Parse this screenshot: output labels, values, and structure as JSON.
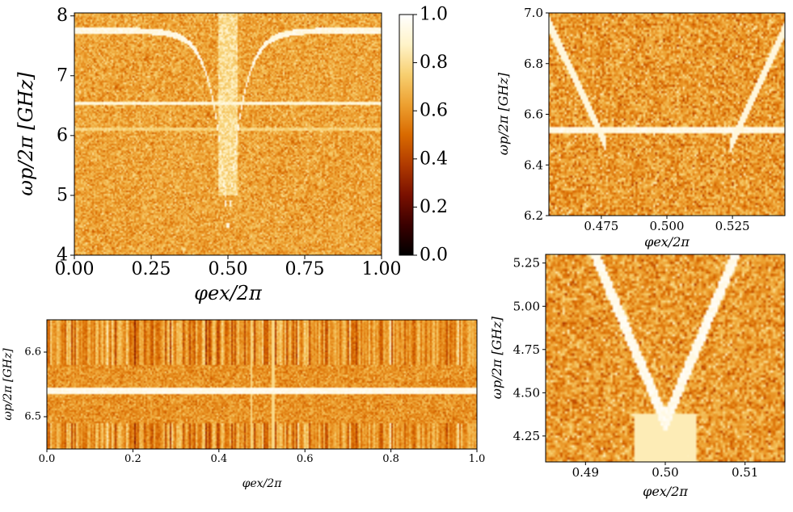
{
  "palette": [
    "#000000",
    "#3a0000",
    "#7a1000",
    "#b03a00",
    "#d96a00",
    "#eda030",
    "#f7cf70",
    "#fff3c8",
    "#ffffff"
  ],
  "chart_data": [
    {
      "id": "main",
      "type": "heatmap",
      "xlabel": "φex/2π",
      "ylabel": "ωp/2π [GHz]",
      "xlim": [
        0.0,
        1.0
      ],
      "ylim": [
        4.0,
        8.05
      ],
      "xticks": [
        "0.00",
        "0.25",
        "0.50",
        "0.75",
        "1.00"
      ],
      "xtick_values": [
        0.0,
        0.25,
        0.5,
        0.75,
        1.0
      ],
      "yticks": [
        "4",
        "5",
        "6",
        "7",
        "8"
      ],
      "ytick_values": [
        4,
        5,
        6,
        7,
        8
      ],
      "colorbar": {
        "vmin": 0.0,
        "vmax": 1.0,
        "ticks": [
          "0.0",
          "0.2",
          "0.4",
          "0.6",
          "0.8",
          "1.0"
        ],
        "tick_values": [
          0.0,
          0.2,
          0.4,
          0.6,
          0.8,
          1.0
        ]
      },
      "background_level": 0.64,
      "features": [
        {
          "kind": "resonance_curve",
          "center_x": 0.5,
          "upper_freq": 7.75,
          "min_freq": 4.3
        },
        {
          "kind": "horizontal_line",
          "freq": 6.54
        },
        {
          "kind": "horizontal_line",
          "freq": 6.1,
          "weak": true
        }
      ]
    },
    {
      "id": "top_right",
      "type": "heatmap",
      "xlabel": "φex/2π",
      "ylabel": "ωp/2π [GHz]",
      "xlim": [
        0.455,
        0.545
      ],
      "ylim": [
        6.2,
        7.0
      ],
      "xticks": [
        "0.475",
        "0.500",
        "0.525"
      ],
      "xtick_values": [
        0.475,
        0.5,
        0.525
      ],
      "yticks": [
        "6.2",
        "6.4",
        "6.6",
        "6.8",
        "7.0"
      ],
      "ytick_values": [
        6.2,
        6.4,
        6.6,
        6.8,
        7.0
      ],
      "background_level": 0.62,
      "features": [
        {
          "kind": "anticrossing",
          "freq": 6.54,
          "cross_x": [
            0.474,
            0.527
          ]
        }
      ]
    },
    {
      "id": "bottom_left",
      "type": "heatmap",
      "xlabel": "φex/2π",
      "ylabel": "ωp/2π [GHz]",
      "xlim": [
        0.0,
        1.0
      ],
      "ylim": [
        6.45,
        6.65
      ],
      "xticks": [
        "0.0",
        "0.2",
        "0.4",
        "0.6",
        "0.8",
        "1.0"
      ],
      "xtick_values": [
        0.0,
        0.2,
        0.4,
        0.6,
        0.8,
        1.0
      ],
      "yticks": [
        "6.5",
        "6.6"
      ],
      "ytick_values": [
        6.5,
        6.6
      ],
      "background_level": 0.6,
      "features": [
        {
          "kind": "horizontal_line",
          "freq": 6.54
        },
        {
          "kind": "vertical_lines",
          "x": [
            0.475,
            0.527
          ]
        }
      ]
    },
    {
      "id": "bottom_right",
      "type": "heatmap",
      "xlabel": "φex/2π",
      "ylabel": "ωp/2π [GHz]",
      "xlim": [
        0.485,
        0.515
      ],
      "ylim": [
        4.1,
        5.3
      ],
      "xticks": [
        "0.49",
        "0.50",
        "0.51"
      ],
      "xtick_values": [
        0.49,
        0.5,
        0.51
      ],
      "yticks": [
        "4.25",
        "4.50",
        "4.75",
        "5.00",
        "5.25"
      ],
      "ytick_values": [
        4.25,
        4.5,
        4.75,
        5.0,
        5.25
      ],
      "background_level": 0.62,
      "features": [
        {
          "kind": "v_curve",
          "center_x": 0.5,
          "min_freq": 4.33
        }
      ]
    }
  ]
}
